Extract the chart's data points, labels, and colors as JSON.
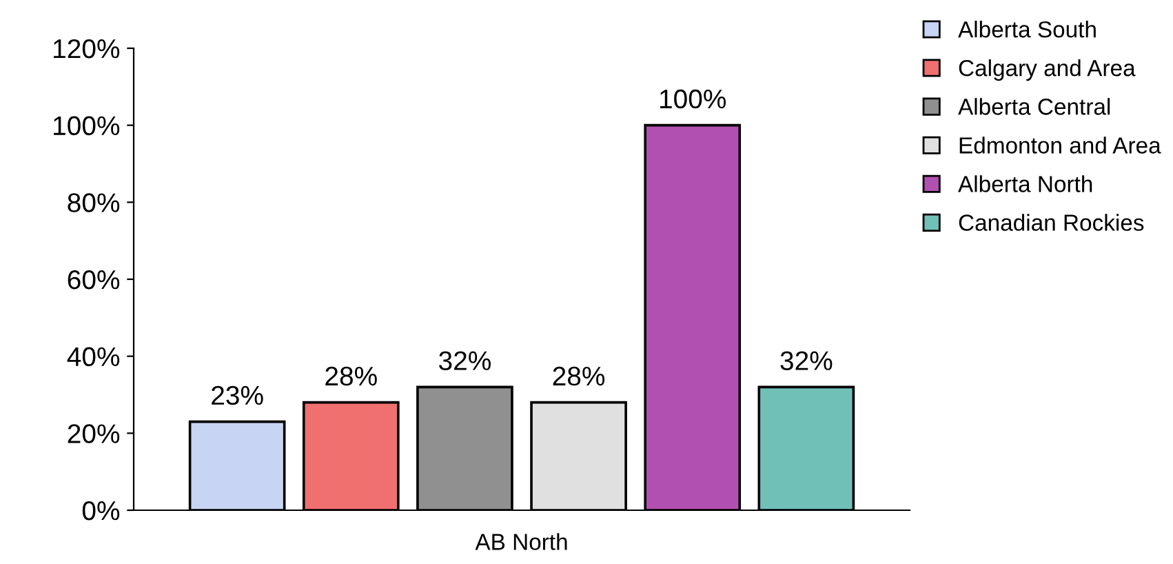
{
  "chart_data": {
    "type": "bar",
    "categories": [
      "AB North"
    ],
    "series": [
      {
        "name": "Alberta South",
        "color": "#c8d4f4",
        "values": [
          23
        ]
      },
      {
        "name": "Calgary and Area",
        "color": "#f07070",
        "values": [
          28
        ]
      },
      {
        "name": "Alberta Central",
        "color": "#909090",
        "values": [
          32
        ]
      },
      {
        "name": "Edmonton and Area",
        "color": "#e0e0e0",
        "values": [
          28
        ]
      },
      {
        "name": "Alberta North",
        "color": "#b050b0",
        "values": [
          100
        ]
      },
      {
        "name": "Canadian Rockies",
        "color": "#70c0b8",
        "values": [
          32
        ]
      }
    ],
    "value_labels": [
      [
        "23%"
      ],
      [
        "28%"
      ],
      [
        "32%"
      ],
      [
        "28%"
      ],
      [
        "100%"
      ],
      [
        "32%"
      ]
    ],
    "ylim": [
      0,
      120
    ],
    "yticks": [
      {
        "value": 0,
        "label": "0%"
      },
      {
        "value": 20,
        "label": "20%"
      },
      {
        "value": 40,
        "label": "40%"
      },
      {
        "value": 60,
        "label": "60%"
      },
      {
        "value": 80,
        "label": "80%"
      },
      {
        "value": 100,
        "label": "100%"
      },
      {
        "value": 120,
        "label": "120%"
      }
    ],
    "grid": false,
    "legend": "top right"
  }
}
